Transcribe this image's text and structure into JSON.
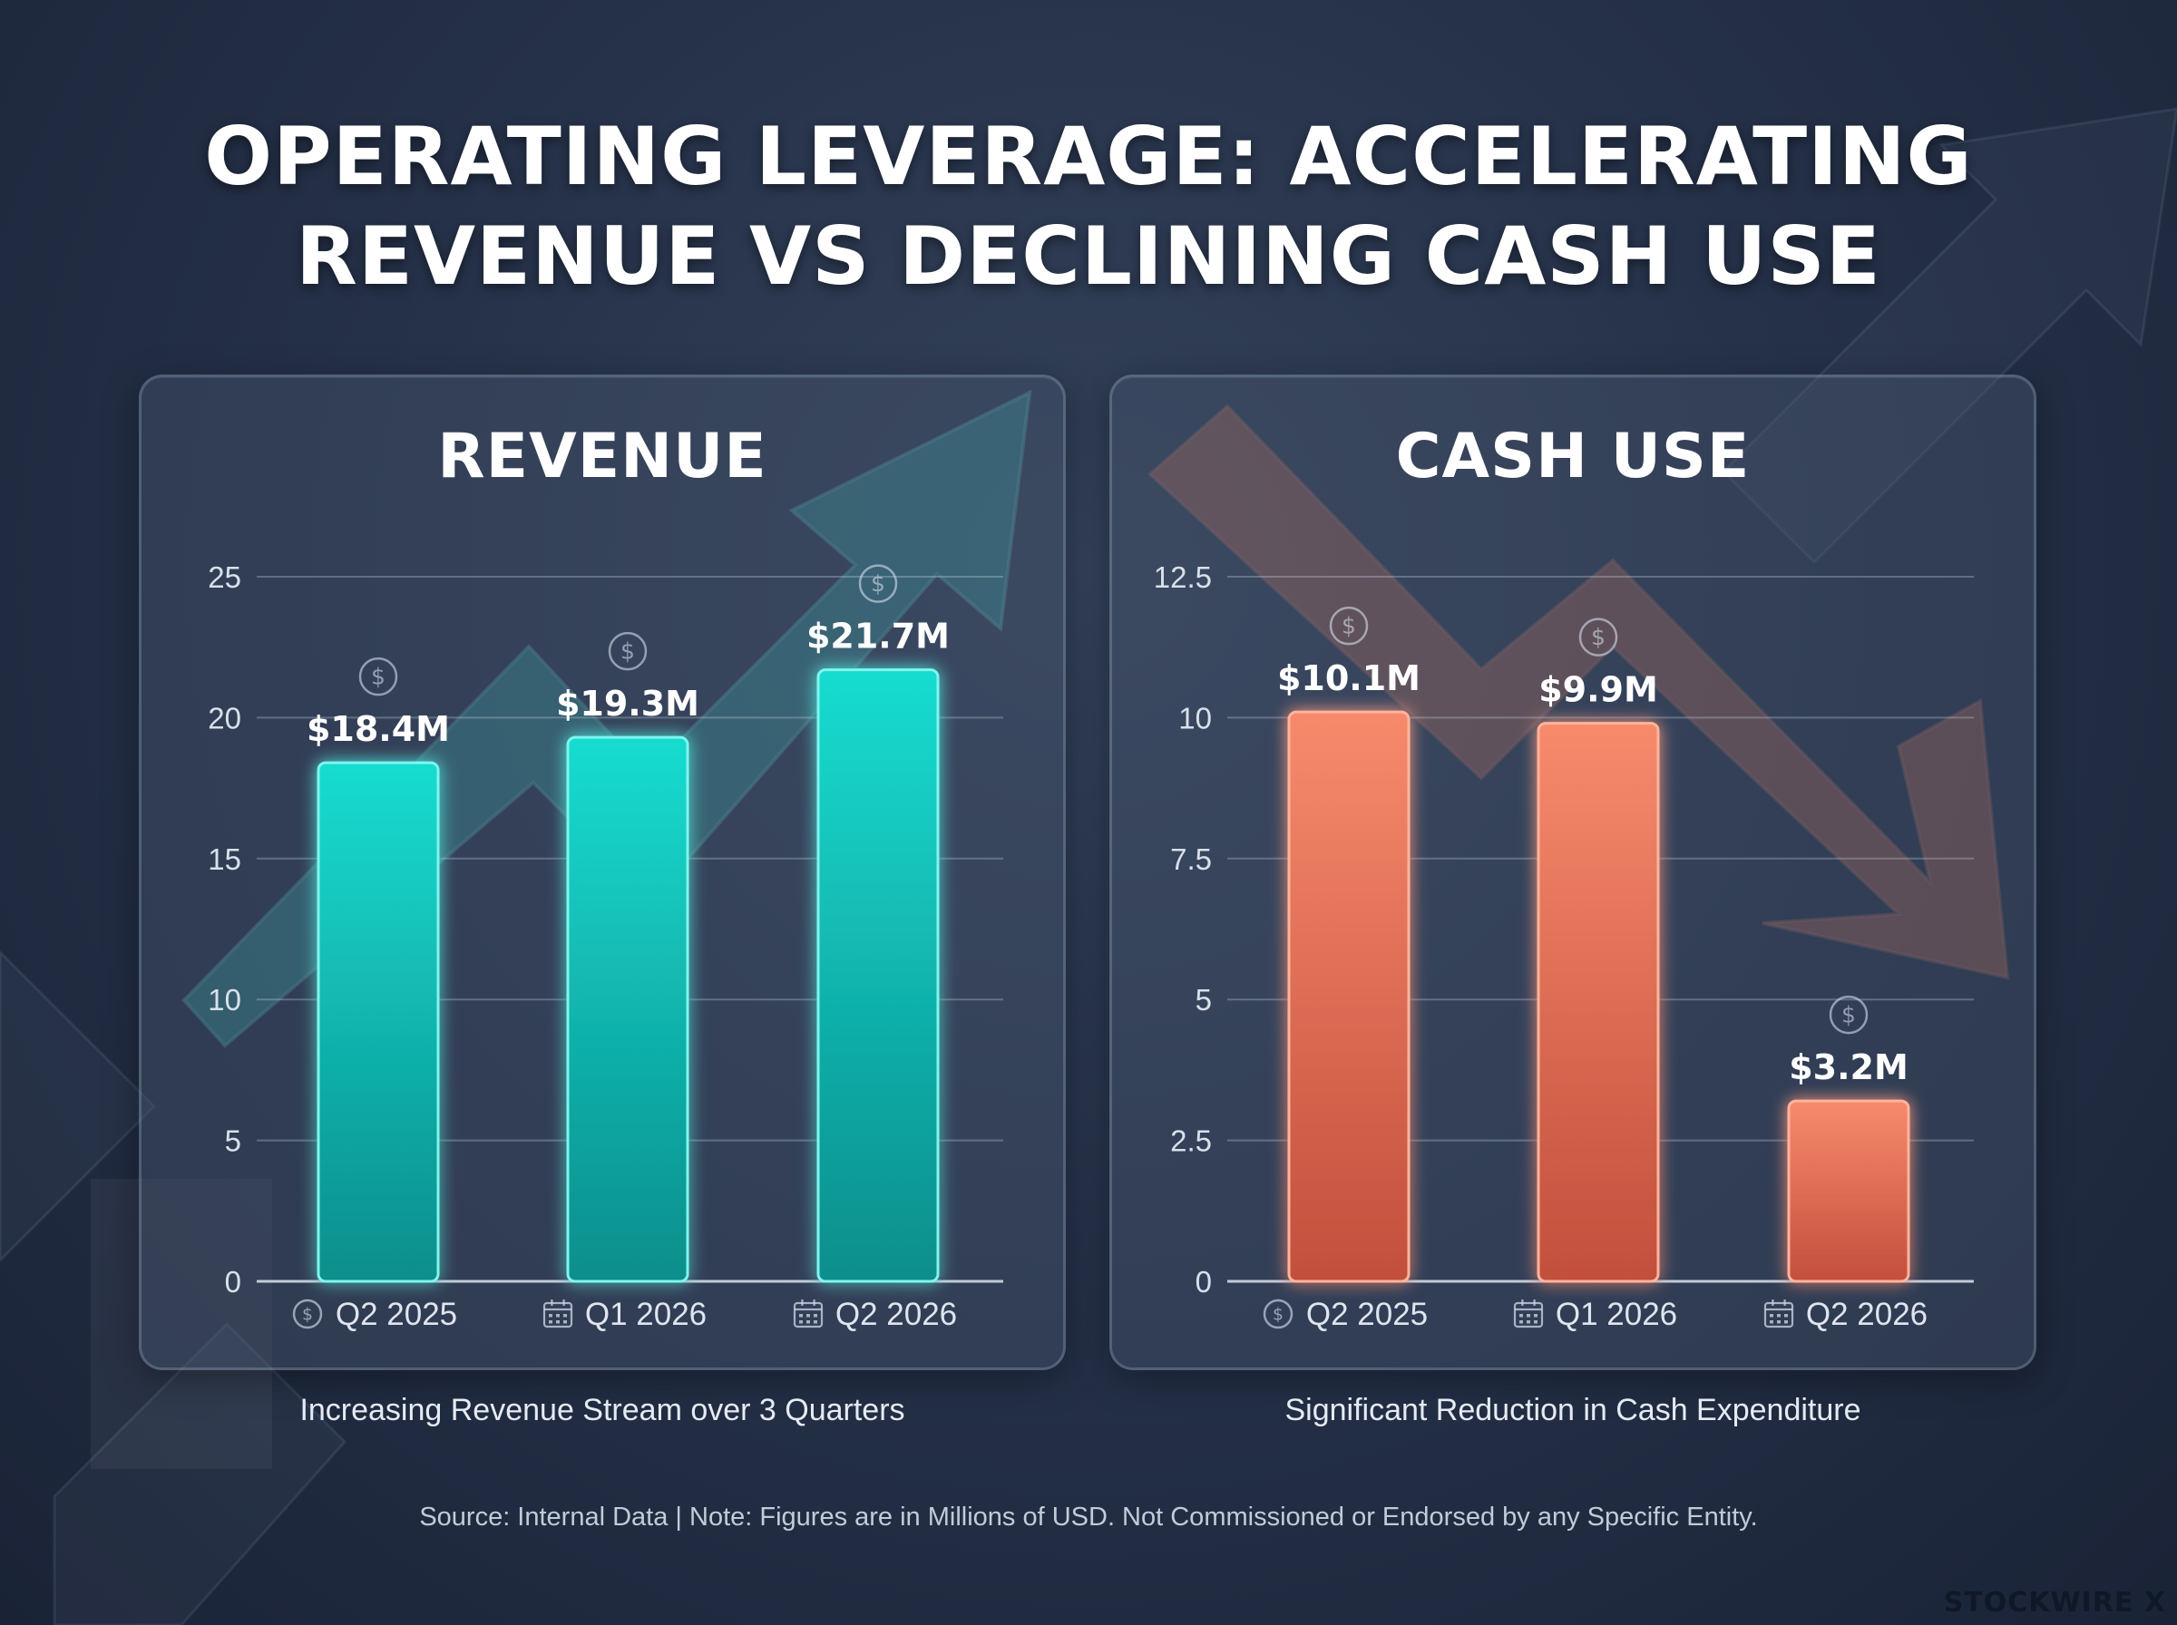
{
  "title_lines": [
    "OPERATING LEVERAGE: ACCELERATING",
    "REVENUE VS DECLINING CASH USE"
  ],
  "source_note": "Source: Internal Data | Note: Figures are in Millions of USD. Not Commissioned or Endorsed by any Specific Entity.",
  "brand": "STOCKWIRE X",
  "icons": {
    "value_marker": "dollar-coin-icon",
    "q2_2025": "dollar-coin-icon",
    "q1_2026": "calendar-icon",
    "q2_2026": "calendar-icon"
  },
  "colors": {
    "revenue_bar": "#14c9c0",
    "cash_bar": "#ee7a5c",
    "revenue_trend": "#3fa3a6",
    "cash_trend": "#b5705f"
  },
  "chart_data": [
    {
      "type": "bar",
      "title": "REVENUE",
      "categories": [
        "Q2 2025",
        "Q1 2026",
        "Q2 2026"
      ],
      "values": [
        18.4,
        19.3,
        21.7
      ],
      "data_labels": [
        "$18.4M",
        "$19.3M",
        "$21.7M"
      ],
      "ylim": [
        0,
        25
      ],
      "yticks": [
        "0",
        "5",
        "10",
        "15",
        "20",
        "25"
      ],
      "ytick_values": [
        0,
        5,
        10,
        15,
        20,
        25
      ],
      "grid": true,
      "caption": "Increasing Revenue Stream over 3 Quarters",
      "trend": "up"
    },
    {
      "type": "bar",
      "title": "CASH USE",
      "categories": [
        "Q2 2025",
        "Q1 2026",
        "Q2 2026"
      ],
      "values": [
        10.1,
        9.9,
        3.2
      ],
      "data_labels": [
        "$10.1M",
        "$9.9M",
        "$3.2M"
      ],
      "ylim": [
        0,
        12.5
      ],
      "yticks": [
        "0",
        "2.5",
        "5",
        "7.5",
        "10",
        "12.5"
      ],
      "ytick_values": [
        0,
        2.5,
        5,
        7.5,
        10,
        12.5
      ],
      "grid": true,
      "caption": "Significant Reduction in Cash Expenditure",
      "trend": "down"
    }
  ]
}
